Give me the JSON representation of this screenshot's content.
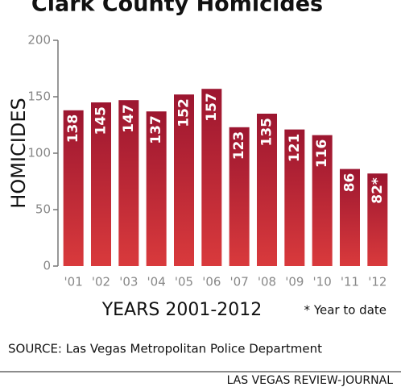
{
  "chart_data": {
    "type": "bar",
    "title": "Clark County Homicides",
    "y_label": "HOMICIDES",
    "x_label": "YEARS 2001-2012",
    "note": "* Year to date",
    "source": "SOURCE: Las Vegas Metropolitan Police Department",
    "credit": "LAS VEGAS REVIEW-JOURNAL",
    "categories": [
      "'01",
      "'02",
      "'03",
      "'04",
      "'05",
      "'06",
      "'07",
      "'08",
      "'09",
      "'10",
      "'11",
      "'12"
    ],
    "values": [
      138,
      145,
      147,
      137,
      152,
      157,
      123,
      135,
      121,
      116,
      86,
      82
    ],
    "value_labels": [
      "138",
      "145",
      "147",
      "137",
      "152",
      "157",
      "123",
      "135",
      "121",
      "116",
      "86",
      "82*"
    ],
    "color": "#9c1630",
    "ylim": [
      0,
      200
    ],
    "yticks": [
      0,
      50,
      100,
      150,
      200
    ]
  }
}
